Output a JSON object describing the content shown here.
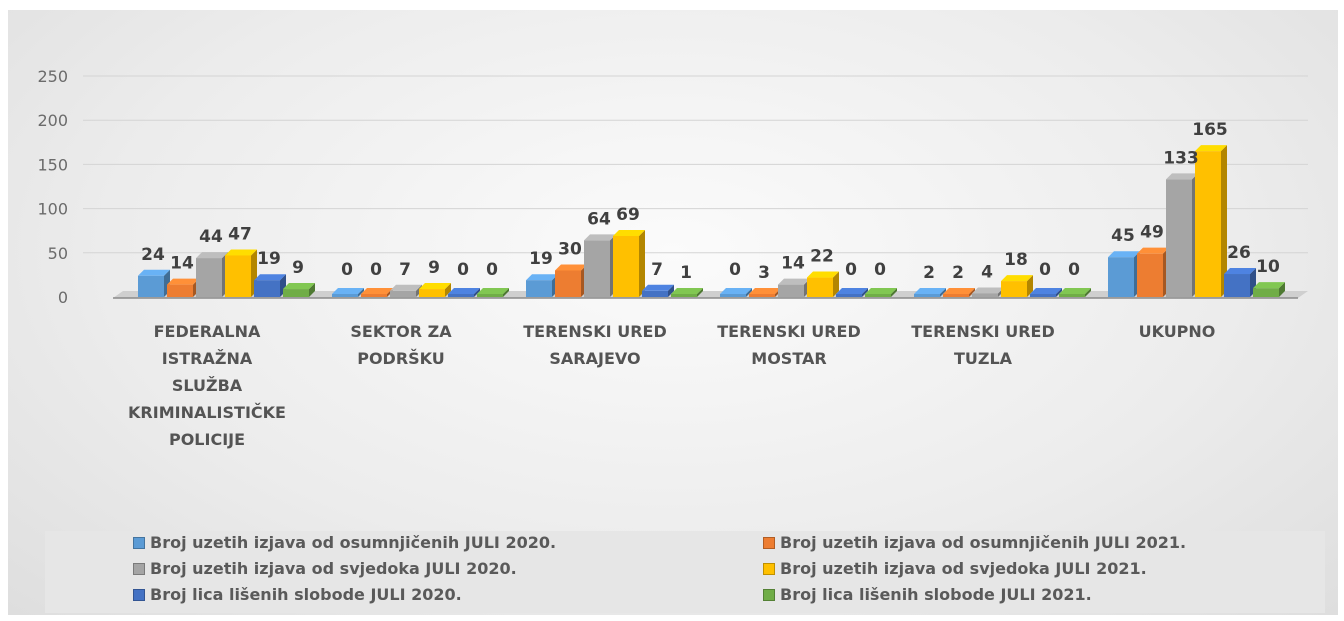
{
  "chart_data": {
    "type": "bar",
    "title": "",
    "xlabel": "",
    "ylabel": "",
    "ylim": [
      0,
      250
    ],
    "yticks": [
      0,
      50,
      100,
      150,
      200,
      250
    ],
    "grid": true,
    "legend_position": "bottom",
    "categories": [
      "FEDERALNA ISTRAŽNA SLUŽBA KRIMINALISTIČKE POLICIJE",
      "SEKTOR ZA PODRŠKU",
      "TERENSKI URED SARAJEVO",
      "TERENSKI URED MOSTAR",
      "TERENSKI URED TUZLA",
      "UKUPNO"
    ],
    "series": [
      {
        "name": "Broj uzetih izjava od osumnjičenih JULI 2020.",
        "color": "#5B9BD5",
        "values": [
          24,
          0,
          19,
          0,
          2,
          45
        ]
      },
      {
        "name": "Broj uzetih izjava od osumnjičenih JULI 2021.",
        "color": "#ED7D31",
        "values": [
          14,
          0,
          30,
          3,
          2,
          49
        ]
      },
      {
        "name": "Broj uzetih izjava od svjedoka JULI 2020.",
        "color": "#A5A5A5",
        "values": [
          44,
          7,
          64,
          14,
          4,
          133
        ]
      },
      {
        "name": "Broj uzetih izjava od svjedoka JULI 2021.",
        "color": "#FFC000",
        "values": [
          47,
          9,
          69,
          22,
          18,
          165
        ]
      },
      {
        "name": "Broj lica lišenih slobode JULI 2020.",
        "color": "#4472C4",
        "values": [
          19,
          0,
          7,
          0,
          0,
          26
        ]
      },
      {
        "name": "Broj lica lišenih slobode JULI 2021.",
        "color": "#70AD47",
        "values": [
          9,
          0,
          1,
          0,
          0,
          10
        ]
      }
    ]
  }
}
